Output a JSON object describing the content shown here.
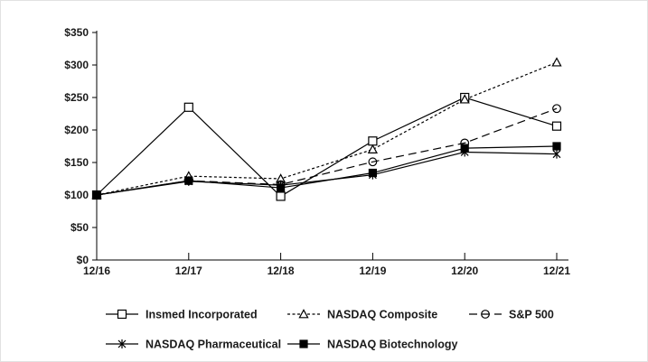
{
  "figure": {
    "background": "#ffffff",
    "border_color": "#e2e2e2",
    "axis_color": "#000000",
    "line_color": "#000000"
  },
  "chart_data": {
    "type": "line",
    "categories": [
      "12/16",
      "12/17",
      "12/18",
      "12/19",
      "12/20",
      "12/21"
    ],
    "series": [
      {
        "name": "Insmed Incorporated",
        "values": [
          100,
          235,
          98,
          183,
          250,
          206
        ],
        "marker": "open-square",
        "line_style": "solid"
      },
      {
        "name": "NASDAQ Composite",
        "values": [
          100,
          129,
          125,
          170,
          247,
          304
        ],
        "marker": "open-triangle",
        "line_style": "dotted"
      },
      {
        "name": "S&P 500",
        "values": [
          100,
          122,
          116,
          151,
          180,
          233
        ],
        "marker": "open-circle",
        "line_style": "dashed"
      },
      {
        "name": "NASDAQ Pharmaceutical",
        "values": [
          100,
          121,
          115,
          131,
          166,
          163
        ],
        "marker": "asterisk",
        "line_style": "solid"
      },
      {
        "name": "NASDAQ Biotechnology",
        "values": [
          100,
          122,
          111,
          134,
          172,
          175
        ],
        "marker": "filled-square",
        "line_style": "solid"
      }
    ],
    "ylim": [
      0,
      350
    ],
    "ytick_step": 50,
    "ytick_labels": [
      "$0",
      "$50",
      "$100",
      "$150",
      "$200",
      "$250",
      "$300",
      "$350"
    ],
    "xlabel": "",
    "ylabel": "",
    "grid": false,
    "legend_position": "bottom",
    "legend_rows": [
      [
        0,
        1,
        2
      ],
      [
        3,
        4
      ]
    ]
  }
}
